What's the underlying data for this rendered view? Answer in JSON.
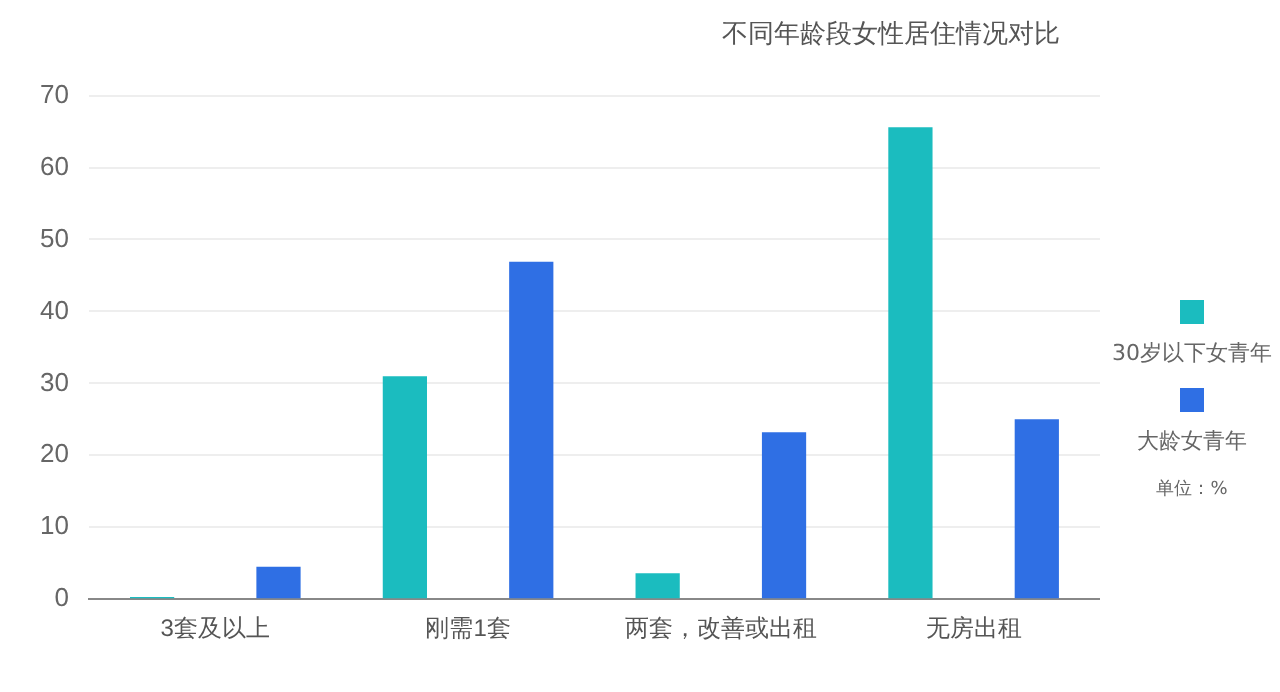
{
  "chart_data": {
    "type": "bar",
    "title": "不同年龄段女性居住情况对比",
    "categories": [
      "3套及以上",
      "刚需1套",
      "两套，改善或出租",
      "无房出租"
    ],
    "series": [
      {
        "name": "30岁以下女青年",
        "color": "#1bbcbf",
        "values": [
          0.3,
          31,
          3.6,
          65.6
        ]
      },
      {
        "name": "大龄女青年",
        "color": "#2f6fe4",
        "values": [
          4.5,
          46.9,
          23.2,
          25
        ]
      }
    ],
    "ylim": [
      0,
      70
    ],
    "yticks": [
      0,
      10,
      20,
      30,
      40,
      50,
      60,
      70
    ],
    "grid": "y",
    "legend": "right",
    "annotations": [
      "单位：%"
    ]
  }
}
